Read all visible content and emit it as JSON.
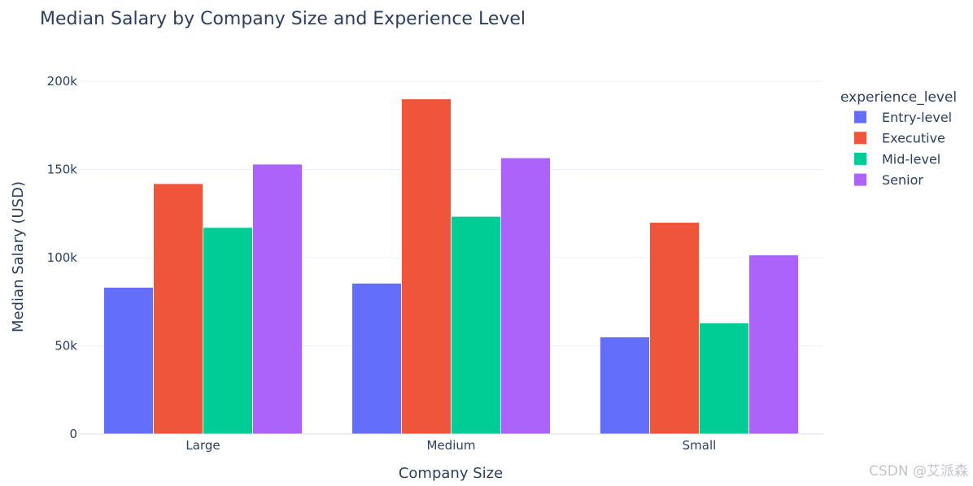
{
  "watermark": "CSDN @艾派森",
  "chart_data": {
    "type": "bar",
    "title": "Median Salary by Company Size and Experience Level",
    "xlabel": "Company Size",
    "ylabel": "Median Salary (USD)",
    "categories": [
      "Large",
      "Medium",
      "Small"
    ],
    "ylim": [
      0,
      200000
    ],
    "yticks": [
      {
        "value": 0,
        "label": "0"
      },
      {
        "value": 50000,
        "label": "50k"
      },
      {
        "value": 100000,
        "label": "100k"
      },
      {
        "value": 150000,
        "label": "150k"
      },
      {
        "value": 200000,
        "label": "200k"
      }
    ],
    "grid": true,
    "legend": {
      "title": "experience_level",
      "placement": "right"
    },
    "series": [
      {
        "name": "Entry-level",
        "color": "#636efa",
        "values": [
          83171,
          85500,
          55000
        ]
      },
      {
        "name": "Executive",
        "color": "#ef553b",
        "values": [
          141967,
          190000,
          120000
        ]
      },
      {
        "name": "Mid-level",
        "color": "#00cc96",
        "values": [
          117104,
          123400,
          63000
        ]
      },
      {
        "name": "Senior",
        "color": "#ab63fa",
        "values": [
          153000,
          156600,
          101500
        ]
      }
    ]
  }
}
